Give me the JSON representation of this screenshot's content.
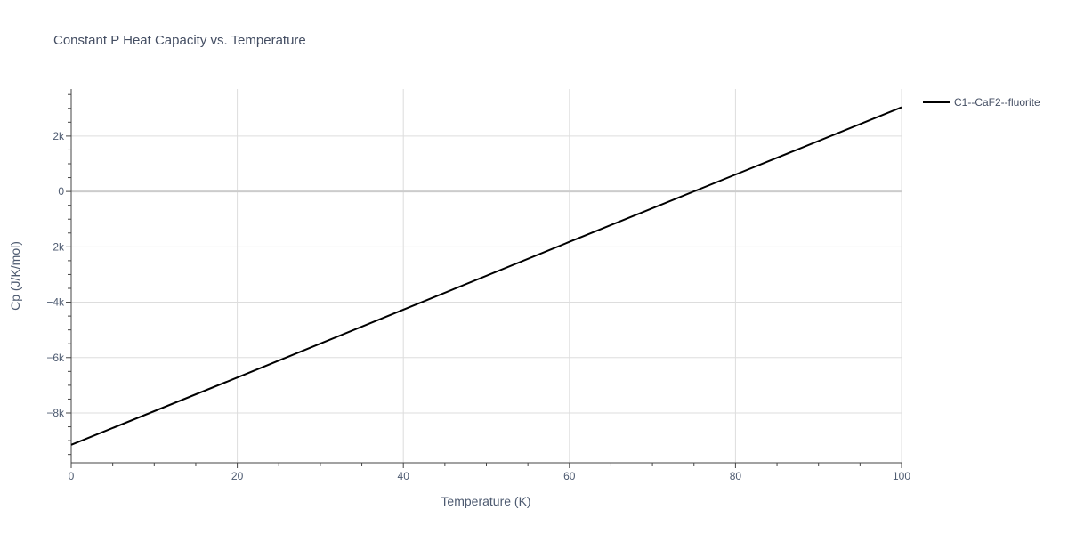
{
  "chart_data": {
    "type": "line",
    "title": "Constant P Heat Capacity vs. Temperature",
    "xlabel": "Temperature (K)",
    "ylabel": "Cp (J/K/mol)",
    "xlim": [
      0,
      100
    ],
    "ylim": [
      -9800,
      3700
    ],
    "x_ticks": [
      0,
      20,
      40,
      60,
      80,
      100
    ],
    "x_tick_labels": [
      "0",
      "20",
      "40",
      "60",
      "80",
      "100"
    ],
    "y_ticks": [
      -8000,
      -6000,
      -4000,
      -2000,
      0,
      2000
    ],
    "y_tick_labels": [
      "−8k",
      "−6k",
      "−4k",
      "−2k",
      "0",
      "2k"
    ],
    "grid": true,
    "legend_position": "top-right",
    "colors": {
      "series": "#000000",
      "grid": "#dddddd",
      "zero_line": "#cccccc",
      "axis": "#444444"
    },
    "series": [
      {
        "name": "C1--CaF2--fluorite",
        "x": [
          0,
          20,
          40,
          60,
          80,
          100
        ],
        "y": [
          -9150,
          -6720,
          -4270,
          -1820,
          610,
          3040
        ]
      }
    ]
  }
}
